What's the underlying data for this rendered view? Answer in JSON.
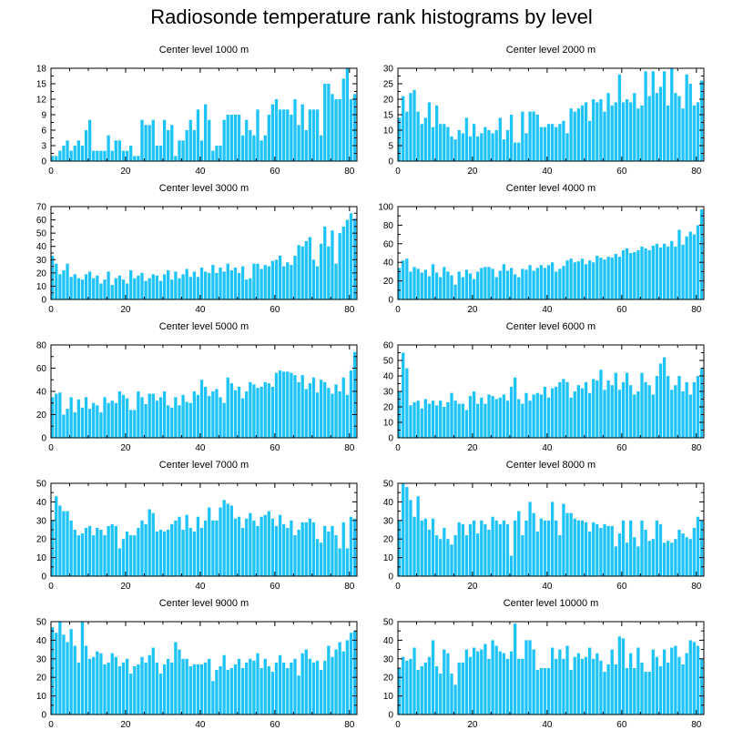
{
  "title": "Radiosonde temperature rank histograms by level",
  "bar_color": "#1ec3f7",
  "chart_data": [
    {
      "type": "bar",
      "title": "Center level 1000 m",
      "xlim": [
        0,
        82
      ],
      "ylim": [
        0,
        18
      ],
      "xticks": [
        0,
        20,
        40,
        60,
        80
      ],
      "yticks": [
        0,
        3,
        6,
        9,
        12,
        15,
        18
      ],
      "values": [
        1,
        1,
        2,
        3,
        4,
        2,
        3,
        4,
        3,
        6,
        8,
        2,
        2,
        2,
        2,
        5,
        2,
        4,
        4,
        2,
        2,
        3,
        1,
        1,
        8,
        7,
        7,
        8,
        3,
        3,
        8,
        6,
        7,
        1,
        4,
        4,
        6,
        8,
        6,
        10,
        4,
        11,
        8,
        2,
        3,
        3,
        8,
        9,
        9,
        9,
        9,
        5,
        8,
        6,
        5,
        10,
        4,
        5,
        9,
        11,
        12,
        10,
        10,
        10,
        9,
        12,
        7,
        11,
        6,
        10,
        10,
        10,
        5,
        15,
        15,
        13,
        12,
        12,
        16,
        18,
        12,
        13
      ]
    },
    {
      "type": "bar",
      "title": "Center level 2000 m",
      "xlim": [
        0,
        82
      ],
      "ylim": [
        0,
        30
      ],
      "xticks": [
        0,
        20,
        40,
        60,
        80
      ],
      "yticks": [
        0,
        5,
        10,
        15,
        20,
        25,
        30
      ],
      "values": [
        14,
        21,
        16,
        22,
        23,
        16,
        12,
        14,
        19,
        11,
        18,
        12,
        12,
        11,
        8,
        7,
        10,
        9,
        14,
        8,
        12,
        8,
        9,
        11,
        10,
        9,
        10,
        14,
        7,
        10,
        15,
        6,
        6,
        16,
        9,
        16,
        16,
        15,
        11,
        11,
        12,
        12,
        11,
        12,
        13,
        9,
        17,
        16,
        17,
        18,
        19,
        13,
        20,
        19,
        20,
        16,
        22,
        18,
        19,
        28,
        19,
        20,
        19,
        22,
        17,
        18,
        29,
        21,
        29,
        22,
        24,
        29,
        18,
        30,
        22,
        21,
        17,
        28,
        25,
        18,
        19,
        26
      ]
    },
    {
      "type": "bar",
      "title": "Center level 3000 m",
      "xlim": [
        0,
        82
      ],
      "ylim": [
        0,
        70
      ],
      "xticks": [
        0,
        20,
        40,
        60,
        80
      ],
      "yticks": [
        0,
        10,
        20,
        30,
        40,
        50,
        60,
        70
      ],
      "values": [
        33,
        27,
        19,
        22,
        27,
        17,
        19,
        16,
        15,
        19,
        21,
        16,
        18,
        12,
        15,
        21,
        11,
        16,
        18,
        15,
        12,
        22,
        16,
        18,
        20,
        14,
        16,
        19,
        18,
        14,
        19,
        22,
        15,
        21,
        16,
        19,
        23,
        17,
        21,
        17,
        24,
        21,
        20,
        26,
        20,
        24,
        21,
        27,
        22,
        24,
        20,
        25,
        15,
        16,
        27,
        27,
        23,
        26,
        25,
        29,
        30,
        33,
        25,
        28,
        26,
        33,
        41,
        40,
        44,
        47,
        30,
        25,
        42,
        55,
        40,
        52,
        27,
        50,
        55,
        60,
        65,
        61
      ]
    },
    {
      "type": "bar",
      "title": "Center level 4000 m",
      "xlim": [
        0,
        82
      ],
      "ylim": [
        0,
        100
      ],
      "xticks": [
        0,
        20,
        40,
        60,
        80
      ],
      "yticks": [
        0,
        20,
        40,
        60,
        80,
        100
      ],
      "values": [
        34,
        42,
        44,
        30,
        35,
        33,
        29,
        32,
        25,
        38,
        29,
        24,
        35,
        30,
        26,
        16,
        30,
        24,
        32,
        28,
        22,
        30,
        34,
        35,
        35,
        33,
        24,
        31,
        38,
        31,
        34,
        27,
        24,
        33,
        32,
        37,
        31,
        34,
        37,
        34,
        37,
        40,
        30,
        33,
        36,
        42,
        44,
        40,
        41,
        44,
        38,
        42,
        40,
        47,
        45,
        43,
        46,
        45,
        49,
        46,
        53,
        55,
        50,
        51,
        53,
        57,
        55,
        53,
        58,
        60,
        56,
        60,
        57,
        63,
        57,
        75,
        59,
        68,
        73,
        70,
        80,
        97
      ]
    },
    {
      "type": "bar",
      "title": "Center level 5000 m",
      "xlim": [
        0,
        82
      ],
      "ylim": [
        0,
        80
      ],
      "xticks": [
        0,
        20,
        40,
        60,
        80
      ],
      "yticks": [
        0,
        20,
        40,
        60,
        80
      ],
      "values": [
        35,
        38,
        39,
        20,
        25,
        35,
        22,
        33,
        26,
        35,
        25,
        30,
        28,
        22,
        35,
        30,
        32,
        30,
        40,
        37,
        34,
        24,
        24,
        40,
        35,
        29,
        38,
        38,
        32,
        35,
        40,
        28,
        26,
        35,
        28,
        37,
        31,
        30,
        40,
        37,
        50,
        44,
        36,
        40,
        42,
        35,
        30,
        52,
        47,
        41,
        44,
        34,
        40,
        48,
        46,
        43,
        44,
        48,
        47,
        44,
        56,
        58,
        57,
        57,
        56,
        54,
        48,
        54,
        42,
        47,
        52,
        39,
        50,
        48,
        43,
        38,
        46,
        40,
        52,
        37,
        58,
        74
      ]
    },
    {
      "type": "bar",
      "title": "Center level 6000 m",
      "xlim": [
        0,
        82
      ],
      "ylim": [
        0,
        60
      ],
      "xticks": [
        0,
        20,
        40,
        60,
        80
      ],
      "yticks": [
        0,
        10,
        20,
        30,
        40,
        50,
        60
      ],
      "values": [
        30,
        55,
        45,
        21,
        23,
        24,
        19,
        25,
        22,
        24,
        21,
        24,
        20,
        23,
        29,
        24,
        22,
        22,
        18,
        27,
        30,
        22,
        26,
        22,
        28,
        27,
        25,
        26,
        28,
        24,
        33,
        39,
        25,
        22,
        29,
        24,
        28,
        29,
        28,
        33,
        26,
        32,
        33,
        36,
        38,
        36,
        26,
        30,
        34,
        32,
        36,
        29,
        38,
        37,
        44,
        31,
        37,
        34,
        42,
        31,
        36,
        42,
        34,
        28,
        30,
        42,
        36,
        34,
        28,
        40,
        48,
        52,
        40,
        31,
        34,
        40,
        30,
        36,
        28,
        36,
        40,
        45
      ]
    },
    {
      "type": "bar",
      "title": "Center level 7000 m",
      "xlim": [
        0,
        82
      ],
      "ylim": [
        0,
        50
      ],
      "xticks": [
        0,
        20,
        40,
        60,
        80
      ],
      "yticks": [
        0,
        10,
        20,
        30,
        40,
        50
      ],
      "values": [
        30,
        43,
        38,
        35,
        35,
        30,
        25,
        22,
        23,
        26,
        27,
        22,
        26,
        25,
        22,
        27,
        28,
        27,
        15,
        20,
        24,
        22,
        22,
        26,
        30,
        28,
        36,
        34,
        24,
        25,
        24,
        25,
        28,
        30,
        32,
        25,
        33,
        26,
        24,
        32,
        26,
        30,
        37,
        30,
        30,
        37,
        41,
        39,
        38,
        31,
        32,
        26,
        31,
        34,
        30,
        27,
        32,
        33,
        35,
        31,
        27,
        33,
        28,
        26,
        30,
        22,
        25,
        29,
        29,
        31,
        29,
        20,
        18,
        27,
        24,
        27,
        22,
        15,
        29,
        15,
        32,
        31
      ]
    },
    {
      "type": "bar",
      "title": "Center level 8000 m",
      "xlim": [
        0,
        82
      ],
      "ylim": [
        0,
        50
      ],
      "xticks": [
        0,
        20,
        40,
        60,
        80
      ],
      "yticks": [
        0,
        10,
        20,
        30,
        40,
        50
      ],
      "values": [
        30,
        50,
        48,
        41,
        32,
        43,
        30,
        31,
        25,
        31,
        22,
        20,
        26,
        20,
        17,
        22,
        29,
        28,
        22,
        28,
        30,
        23,
        30,
        28,
        25,
        32,
        30,
        28,
        30,
        28,
        11,
        30,
        35,
        22,
        30,
        40,
        34,
        24,
        31,
        30,
        30,
        40,
        30,
        22,
        39,
        34,
        34,
        31,
        30,
        30,
        29,
        24,
        29,
        28,
        26,
        28,
        27,
        27,
        16,
        23,
        30,
        18,
        30,
        21,
        16,
        30,
        25,
        19,
        20,
        30,
        28,
        18,
        19,
        18,
        20,
        25,
        23,
        21,
        20,
        26,
        32,
        30
      ]
    },
    {
      "type": "bar",
      "title": "Center level 9000 m",
      "xlim": [
        0,
        82
      ],
      "ylim": [
        0,
        50
      ],
      "xticks": [
        0,
        20,
        40,
        60,
        80
      ],
      "yticks": [
        0,
        10,
        20,
        30,
        40,
        50
      ],
      "values": [
        47,
        44,
        50,
        43,
        39,
        46,
        37,
        28,
        50,
        37,
        30,
        31,
        34,
        33,
        27,
        28,
        33,
        31,
        26,
        28,
        30,
        22,
        26,
        27,
        31,
        28,
        32,
        36,
        28,
        22,
        27,
        30,
        28,
        39,
        35,
        30,
        30,
        26,
        27,
        27,
        27,
        28,
        30,
        18,
        24,
        26,
        32,
        24,
        25,
        27,
        30,
        25,
        28,
        30,
        29,
        33,
        25,
        30,
        26,
        23,
        28,
        32,
        28,
        25,
        28,
        30,
        21,
        33,
        35,
        30,
        28,
        29,
        24,
        29,
        37,
        31,
        35,
        39,
        34,
        40,
        44,
        45
      ]
    },
    {
      "type": "bar",
      "title": "Center level 10000 m",
      "xlim": [
        0,
        82
      ],
      "ylim": [
        0,
        50
      ],
      "xticks": [
        0,
        20,
        40,
        60,
        80
      ],
      "yticks": [
        0,
        10,
        20,
        30,
        40,
        50
      ],
      "values": [
        25,
        31,
        29,
        30,
        36,
        24,
        26,
        28,
        31,
        40,
        26,
        22,
        35,
        33,
        22,
        16,
        28,
        28,
        35,
        31,
        36,
        34,
        35,
        38,
        30,
        40,
        37,
        34,
        33,
        30,
        34,
        49,
        30,
        30,
        40,
        40,
        35,
        24,
        25,
        25,
        25,
        36,
        30,
        35,
        30,
        37,
        24,
        31,
        33,
        30,
        31,
        36,
        30,
        33,
        29,
        23,
        27,
        35,
        27,
        42,
        41,
        25,
        33,
        25,
        36,
        28,
        23,
        23,
        35,
        31,
        26,
        35,
        28,
        36,
        37,
        31,
        27,
        33,
        40,
        39,
        37,
        30
      ]
    }
  ]
}
